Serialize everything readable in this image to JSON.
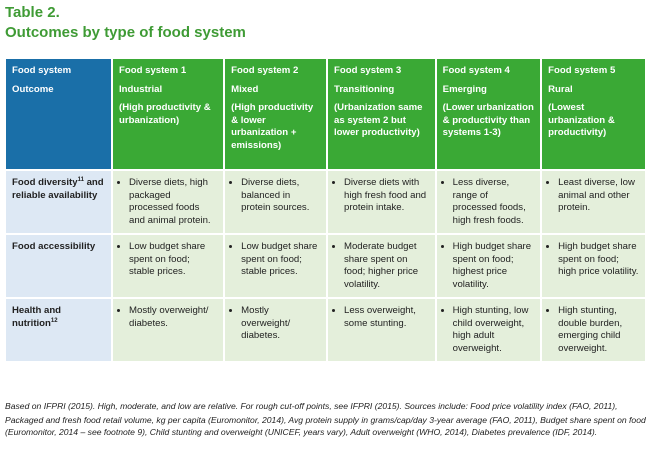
{
  "header": {
    "label": "Table 2.",
    "title": "Outcomes by type of food system"
  },
  "table": {
    "corner": [
      "Food system",
      "Outcome"
    ],
    "columns": [
      {
        "name": "Food system 1",
        "type": "Industrial",
        "description": "(High productivity & urbanization)"
      },
      {
        "name": "Food system 2",
        "type": "Mixed",
        "description": "(High productivity & lower urbanization + emissions)"
      },
      {
        "name": "Food system 3",
        "type": "Transitioning",
        "description": "(Urbanization same as system 2 but lower productivity)"
      },
      {
        "name": "Food system 4",
        "type": "Emerging",
        "description": "(Lower urbanization & productivity than systems 1-3)"
      },
      {
        "name": "Food system 5",
        "type": "Rural",
        "description": "(Lowest urbanization & productivity)"
      }
    ],
    "rows": [
      {
        "label": [
          "Food diversity",
          "11",
          " and reliable availability"
        ],
        "cells": [
          "Diverse diets, high packaged processed foods and animal protein.",
          "Diverse diets, balanced in protein sources.",
          "Diverse diets with high fresh food and protein intake.",
          "Less diverse, range of processed foods, high fresh foods.",
          "Least diverse, low animal and other protein."
        ]
      },
      {
        "label": [
          "Food accessibility"
        ],
        "cells": [
          "Low budget share spent on food; stable prices.",
          "Low budget share spent on food; stable prices.",
          "Moderate budget share spent on food; higher price volatility.",
          "High budget share spent on food; highest price volatility.",
          "High budget share spent on food; high price volatility."
        ]
      },
      {
        "label": [
          "Health and nutrition",
          "12"
        ],
        "cells": [
          "Mostly overweight/ diabetes.",
          "Mostly overweight/ diabetes.",
          "Less overweight, some stunting.",
          "High stunting, low child overweight, high adult overweight.",
          "High stunting, double burden, emerging child overweight."
        ]
      }
    ]
  },
  "footnote": [
    "Based on IFPRI (2015). High, moderate, and low are relative. For rough cut-off points, see IFPRI (2015). Sources include: Food price volatility index (FAO, 2011),",
    "Packaged and fresh food retail volume, kg per capita (Euromonitor, 2014), Avg protein supply in grams/cap/day 3-year average (FAO, 2011), Budget share spent on food (Euromonitor, 2014 – see footnote 9), Child stunting and overweight (UNICEF, years vary), Adult overweight (WHO, 2014), Diabetes prevalence (IDF, 2014)."
  ]
}
